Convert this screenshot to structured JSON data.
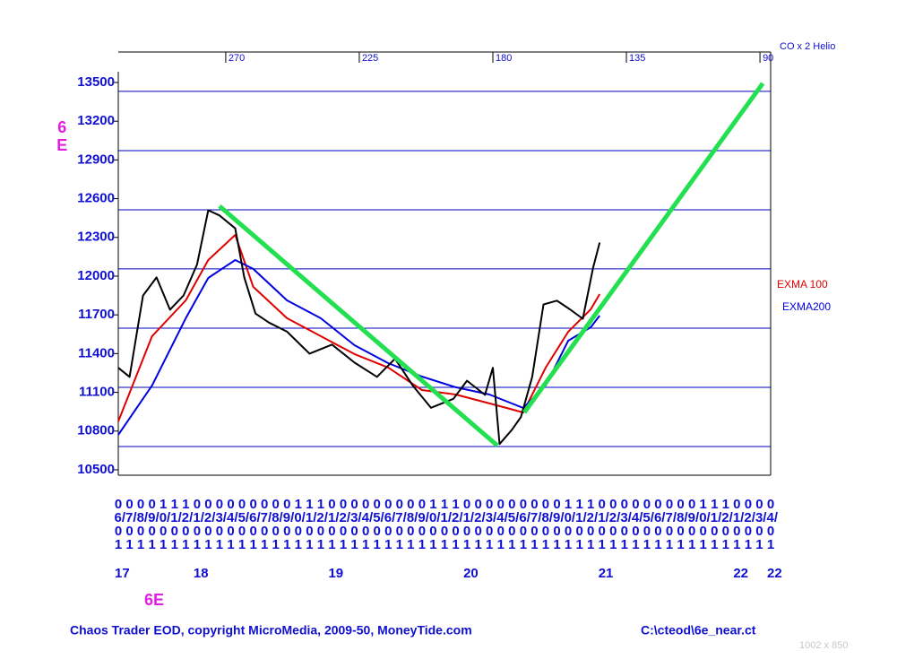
{
  "chart_data": {
    "type": "line",
    "symbol": "6E",
    "symbol_bottom": "6E",
    "footer_left": "Chaos Trader EOD, copyright MicroMedia, 2009-50, MoneyTide.com",
    "footer_right": "C:\\cteod\\6e_near.ct",
    "size_note": "1002 x 850",
    "x2label": "CO x 2 Helio",
    "x2lim": [
      306.2,
      86.4
    ],
    "x2ticks": [
      270,
      225,
      180,
      135,
      90
    ],
    "xlim": [
      0,
      58
    ],
    "categories": [
      "06/01",
      "07/01",
      "08/01",
      "09/01",
      "10/01",
      "11/01",
      "12/01",
      "01/01",
      "02/01",
      "03/01",
      "04/01",
      "05/01",
      "06/01",
      "07/01",
      "08/01",
      "09/01",
      "10/01",
      "11/01",
      "12/01",
      "01/01",
      "02/01",
      "03/01",
      "04/01",
      "05/01",
      "06/01",
      "07/01",
      "08/01",
      "09/01",
      "10/01",
      "11/01",
      "12/01",
      "01/01",
      "02/01",
      "03/01",
      "04/01",
      "05/01",
      "06/01",
      "07/01",
      "08/01",
      "09/01",
      "10/01",
      "11/01",
      "12/01",
      "01/01",
      "02/01",
      "03/01",
      "04/01",
      "05/01",
      "06/01",
      "07/01",
      "08/01",
      "09/01",
      "10/01",
      "11/01",
      "12/01",
      "01/01",
      "02/01",
      "03/01",
      "04/01"
    ],
    "year_labels": [
      {
        "value": 0,
        "label": "17"
      },
      {
        "value": 7,
        "label": "18"
      },
      {
        "value": 19,
        "label": "19"
      },
      {
        "value": 31,
        "label": "20"
      },
      {
        "value": 43,
        "label": "21"
      },
      {
        "value": 55,
        "label": "22"
      },
      {
        "value": 58,
        "label": "22"
      }
    ],
    "ylim": [
      10458,
      13736
    ],
    "yticks": [
      10500,
      10800,
      11100,
      11400,
      11700,
      12000,
      12300,
      12600,
      12900,
      13200,
      13500
    ],
    "levels": [
      10680,
      11139,
      11597,
      12056,
      12514,
      12972,
      13431
    ],
    "level_color": "#0000c0",
    "price": {
      "color": "#000000",
      "x": [
        0,
        1.0,
        2.2,
        3.4,
        4.6,
        5.8,
        7.0,
        8.0,
        9.0,
        10.4,
        11.2,
        12.2,
        13.4,
        15.0,
        17.0,
        19.0,
        21.0,
        23.0,
        24.6,
        26.2,
        27.8,
        29.8,
        31.0,
        32.6,
        33.3,
        33.9,
        35.0,
        35.8,
        36.8,
        37.8,
        39.0,
        40.2,
        41.3,
        42.2,
        42.8
      ],
      "values": [
        11290,
        11220,
        11850,
        11990,
        11740,
        11850,
        12090,
        12510,
        12470,
        12370,
        11990,
        11710,
        11640,
        11570,
        11400,
        11470,
        11330,
        11220,
        11360,
        11150,
        10980,
        11050,
        11190,
        11080,
        11290,
        10700,
        10810,
        10910,
        11220,
        11780,
        11810,
        11740,
        11670,
        12060,
        12260
      ]
    },
    "series": [
      {
        "name": "EXMA 100",
        "color": "#e00000",
        "x": [
          0,
          3,
          6,
          8,
          10.4,
          12,
          15,
          18,
          21,
          24,
          27,
          30,
          33,
          36,
          38,
          40,
          42,
          42.8
        ],
        "values": [
          10875,
          11535,
          11812,
          12125,
          12319,
          11917,
          11674,
          11535,
          11396,
          11292,
          11118,
          11083,
          11014,
          10944,
          11292,
          11569,
          11743,
          11861
        ]
      },
      {
        "name": "EXMA200",
        "color": "#0000e0",
        "x": [
          0,
          3,
          6,
          8,
          10.4,
          12,
          15,
          18,
          21,
          24,
          27,
          30,
          33,
          36,
          38,
          40,
          42,
          42.8
        ],
        "values": [
          10771,
          11153,
          11674,
          11986,
          12125,
          12056,
          11812,
          11674,
          11465,
          11326,
          11222,
          11139,
          11083,
          10979,
          11153,
          11500,
          11604,
          11694
        ]
      }
    ],
    "trend": {
      "color": "#22e050",
      "x": [
        9.0,
        33.7,
        null,
        36.1,
        57.3
      ],
      "values": [
        12542,
        10688,
        null,
        10944,
        13493
      ]
    }
  }
}
